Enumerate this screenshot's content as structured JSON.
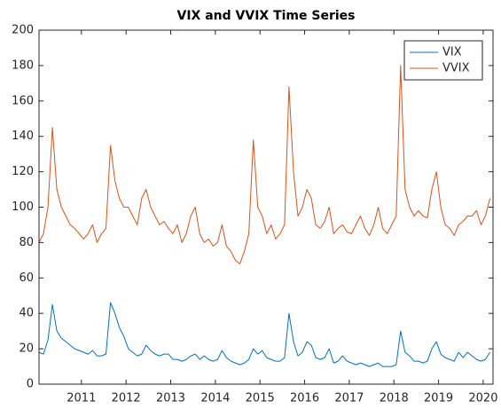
{
  "chart_data": {
    "type": "line",
    "title": "VIX and VVIX Time Series",
    "x": [
      2010.05,
      2010.15,
      2010.25,
      2010.35,
      2010.45,
      2010.55,
      2010.65,
      2010.75,
      2010.85,
      2010.95,
      2011.05,
      2011.15,
      2011.25,
      2011.35,
      2011.45,
      2011.55,
      2011.65,
      2011.75,
      2011.85,
      2011.95,
      2012.05,
      2012.15,
      2012.25,
      2012.35,
      2012.45,
      2012.55,
      2012.65,
      2012.75,
      2012.85,
      2012.95,
      2013.05,
      2013.15,
      2013.25,
      2013.35,
      2013.45,
      2013.55,
      2013.65,
      2013.75,
      2013.85,
      2013.95,
      2014.05,
      2014.15,
      2014.25,
      2014.35,
      2014.45,
      2014.55,
      2014.65,
      2014.75,
      2014.85,
      2014.95,
      2015.05,
      2015.15,
      2015.25,
      2015.35,
      2015.45,
      2015.55,
      2015.65,
      2015.75,
      2015.85,
      2015.95,
      2016.05,
      2016.15,
      2016.25,
      2016.35,
      2016.45,
      2016.55,
      2016.65,
      2016.75,
      2016.85,
      2016.95,
      2017.05,
      2017.15,
      2017.25,
      2017.35,
      2017.45,
      2017.55,
      2017.65,
      2017.75,
      2017.85,
      2017.95,
      2018.05,
      2018.15,
      2018.25,
      2018.35,
      2018.45,
      2018.55,
      2018.65,
      2018.75,
      2018.85,
      2018.95,
      2019.05,
      2019.15,
      2019.25,
      2019.35,
      2019.45,
      2019.55,
      2019.65,
      2019.75,
      2019.85,
      2019.95,
      2020.05,
      2020.15
    ],
    "series": [
      {
        "name": "VIX",
        "color": "#0072bd",
        "values": [
          18,
          17,
          25,
          45,
          30,
          26,
          24,
          22,
          20,
          19,
          18,
          17,
          19,
          16,
          16,
          17,
          46,
          40,
          32,
          27,
          20,
          18,
          16,
          17,
          22,
          19,
          17,
          16,
          17,
          17,
          14,
          14,
          13,
          14,
          16,
          17,
          14,
          16,
          14,
          13,
          14,
          19,
          15,
          13,
          12,
          11,
          12,
          14,
          20,
          17,
          19,
          15,
          14,
          13,
          13,
          15,
          40,
          24,
          16,
          18,
          24,
          22,
          15,
          14,
          15,
          20,
          12,
          13,
          16,
          13,
          12,
          11,
          12,
          11,
          10,
          11,
          12,
          10,
          10,
          10,
          11,
          30,
          18,
          16,
          13,
          13,
          12,
          13,
          20,
          24,
          17,
          15,
          14,
          13,
          18,
          15,
          18,
          16,
          14,
          13,
          14,
          18
        ]
      },
      {
        "name": "VVIX",
        "color": "#d95319",
        "values": [
          80,
          85,
          100,
          145,
          110,
          100,
          95,
          90,
          88,
          85,
          82,
          85,
          90,
          80,
          85,
          88,
          135,
          115,
          105,
          100,
          100,
          95,
          90,
          105,
          110,
          100,
          95,
          90,
          92,
          88,
          85,
          90,
          80,
          85,
          95,
          100,
          85,
          80,
          82,
          78,
          80,
          90,
          78,
          75,
          70,
          68,
          75,
          85,
          138,
          100,
          95,
          85,
          90,
          82,
          85,
          90,
          168,
          120,
          95,
          100,
          110,
          105,
          90,
          88,
          92,
          100,
          85,
          88,
          90,
          86,
          85,
          90,
          95,
          88,
          84,
          90,
          100,
          88,
          85,
          90,
          95,
          180,
          110,
          100,
          95,
          98,
          95,
          94,
          110,
          120,
          100,
          90,
          88,
          84,
          90,
          92,
          95,
          95,
          98,
          90,
          95,
          105
        ]
      }
    ],
    "xlim": [
      2010.05,
      2020.22
    ],
    "xticks": [
      2011,
      2012,
      2013,
      2014,
      2015,
      2016,
      2017,
      2018,
      2019,
      2020
    ],
    "ylim": [
      0,
      200
    ],
    "yticks": [
      0,
      20,
      40,
      60,
      80,
      100,
      120,
      140,
      160,
      180,
      200
    ],
    "legend": "northeast"
  }
}
